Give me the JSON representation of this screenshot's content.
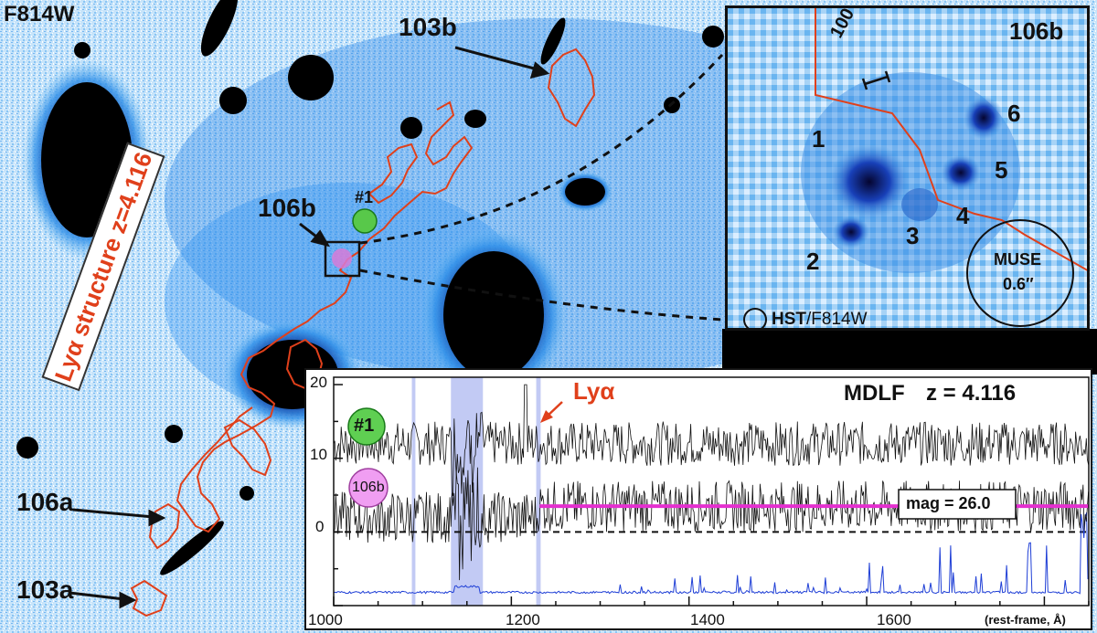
{
  "panel": {
    "filter_label": "F814W",
    "structure_label": "Lyα structure z=4.116",
    "labels": {
      "l103b": "103b",
      "l106b": "106b",
      "l106a": "106a",
      "l103a": "103a",
      "source1": "#1"
    }
  },
  "inset": {
    "title": "106b",
    "scale_bar": "100 pc",
    "clumps": [
      "1",
      "2",
      "3",
      "4",
      "5",
      "6"
    ],
    "muse_label": "MUSE",
    "muse_size": "0.6″",
    "hst_label": "HST",
    "hst_filter": "/F814W"
  },
  "spectrum": {
    "title": "MDLF",
    "redshift": "z = 4.116",
    "lya_label": "Lyα",
    "source1_badge": "#1",
    "source106b_badge": "106b",
    "mag_label": "mag = 26.0",
    "xlabel": "(rest-frame, Å)",
    "x_ticks": [
      "1000",
      "1200",
      "1400",
      "1600"
    ],
    "y_ticks": [
      "0",
      "10",
      "20"
    ],
    "colors": {
      "spectrum": "#111111",
      "sky": "#1f3fd6",
      "band": "#a8b4f0",
      "continuum": "#e52fd0",
      "lya_arrow": "#e0401b"
    }
  },
  "chart_data": {
    "type": "line",
    "title": "MDLF",
    "xlabel": "(rest-frame, Å)",
    "ylabel": "",
    "xlim": [
      1000,
      1850
    ],
    "ylim": [
      -10,
      21
    ],
    "series": [
      {
        "name": "#1",
        "offset": 12
      },
      {
        "name": "106b",
        "offset": 2
      }
    ],
    "continuum_level": 3.5,
    "continuum_mag": 26.0,
    "highlight_bands": [
      [
        1088,
        1092
      ],
      [
        1132,
        1168
      ],
      [
        1228,
        1233
      ]
    ],
    "lya_wavelength": 1216
  }
}
